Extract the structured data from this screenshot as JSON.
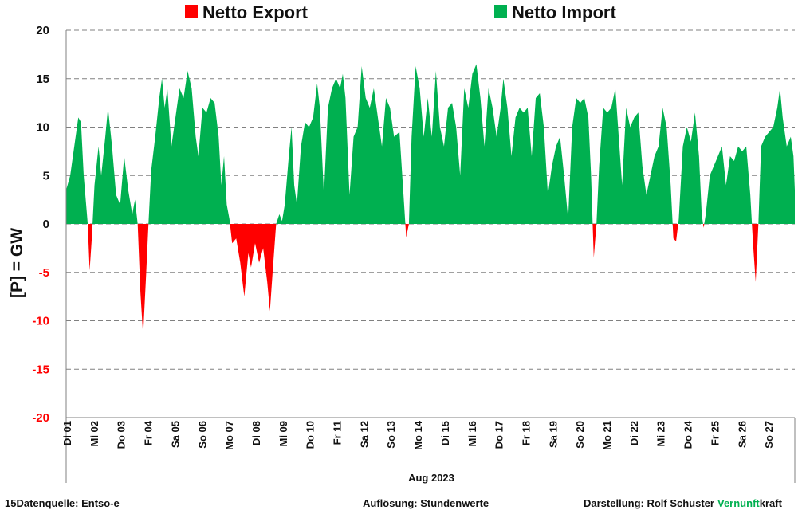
{
  "chart_data": {
    "type": "area",
    "legend": [
      {
        "label": "Netto Export",
        "color": "#ff0000"
      },
      {
        "label": "Netto Import",
        "color": "#00b050"
      }
    ],
    "ylabel": "[P] = GW",
    "xlabel": "Aug 2023",
    "ylim": [
      -20,
      20
    ],
    "yticks": [
      20,
      15,
      10,
      5,
      0,
      -5,
      -10,
      -15,
      -20
    ],
    "ytick_colors": {
      "positive": "#111111",
      "negative": "#ff0000"
    },
    "grid": "horizontal dashed",
    "day_labels": [
      "Di 01",
      "Mi 02",
      "Do 03",
      "Fr 04",
      "Sa 05",
      "So 06",
      "Mo 07",
      "Di 08",
      "Mi 09",
      "Do 10",
      "Fr 11",
      "Sa 12",
      "So 13",
      "Mo 14",
      "Di 15",
      "Mi 16",
      "Do 17",
      "Fr 18",
      "Sa 19",
      "So 20",
      "Mo 21",
      "Di 22",
      "Mi 23",
      "Do 24",
      "Fr 25",
      "Sa 26",
      "So 27"
    ],
    "x_unit": "day of August 2023 (1 = 1 Aug 00:00)",
    "series": [
      {
        "x": 1.0,
        "y": 3.5
      },
      {
        "x": 1.15,
        "y": 5.0
      },
      {
        "x": 1.3,
        "y": 8.0
      },
      {
        "x": 1.45,
        "y": 11.0
      },
      {
        "x": 1.55,
        "y": 10.5
      },
      {
        "x": 1.65,
        "y": 5.0
      },
      {
        "x": 1.8,
        "y": 0.0
      },
      {
        "x": 1.87,
        "y": -4.8
      },
      {
        "x": 1.95,
        "y": -1.5
      },
      {
        "x": 2.05,
        "y": 4.0
      },
      {
        "x": 2.2,
        "y": 8.0
      },
      {
        "x": 2.3,
        "y": 5.0
      },
      {
        "x": 2.45,
        "y": 9.0
      },
      {
        "x": 2.55,
        "y": 12.0
      },
      {
        "x": 2.7,
        "y": 8.0
      },
      {
        "x": 2.85,
        "y": 3.0
      },
      {
        "x": 3.0,
        "y": 2.0
      },
      {
        "x": 3.15,
        "y": 7.0
      },
      {
        "x": 3.3,
        "y": 3.5
      },
      {
        "x": 3.45,
        "y": 1.0
      },
      {
        "x": 3.55,
        "y": 2.5
      },
      {
        "x": 3.65,
        "y": 0.0
      },
      {
        "x": 3.75,
        "y": -7.0
      },
      {
        "x": 3.85,
        "y": -11.5
      },
      {
        "x": 3.95,
        "y": -6.0
      },
      {
        "x": 4.05,
        "y": 0.0
      },
      {
        "x": 4.15,
        "y": 5.5
      },
      {
        "x": 4.3,
        "y": 9.0
      },
      {
        "x": 4.45,
        "y": 13.0
      },
      {
        "x": 4.55,
        "y": 15.0
      },
      {
        "x": 4.65,
        "y": 12.0
      },
      {
        "x": 4.75,
        "y": 14.0
      },
      {
        "x": 4.9,
        "y": 8.0
      },
      {
        "x": 5.05,
        "y": 11.0
      },
      {
        "x": 5.2,
        "y": 14.0
      },
      {
        "x": 5.35,
        "y": 13.0
      },
      {
        "x": 5.5,
        "y": 15.8
      },
      {
        "x": 5.65,
        "y": 14.0
      },
      {
        "x": 5.8,
        "y": 9.0
      },
      {
        "x": 5.9,
        "y": 7.0
      },
      {
        "x": 6.05,
        "y": 12.0
      },
      {
        "x": 6.2,
        "y": 11.5
      },
      {
        "x": 6.35,
        "y": 13.0
      },
      {
        "x": 6.5,
        "y": 12.5
      },
      {
        "x": 6.65,
        "y": 9.0
      },
      {
        "x": 6.75,
        "y": 4.0
      },
      {
        "x": 6.85,
        "y": 7.0
      },
      {
        "x": 6.95,
        "y": 2.0
      },
      {
        "x": 7.05,
        "y": 0.5
      },
      {
        "x": 7.15,
        "y": -2.0
      },
      {
        "x": 7.3,
        "y": -1.5
      },
      {
        "x": 7.45,
        "y": -4.0
      },
      {
        "x": 7.6,
        "y": -7.5
      },
      {
        "x": 7.75,
        "y": -3.0
      },
      {
        "x": 7.85,
        "y": -4.5
      },
      {
        "x": 8.0,
        "y": -2.0
      },
      {
        "x": 8.15,
        "y": -4.0
      },
      {
        "x": 8.3,
        "y": -2.5
      },
      {
        "x": 8.45,
        "y": -6.0
      },
      {
        "x": 8.55,
        "y": -9.0
      },
      {
        "x": 8.65,
        "y": -5.0
      },
      {
        "x": 8.78,
        "y": 0.0
      },
      {
        "x": 8.9,
        "y": 1.0
      },
      {
        "x": 9.0,
        "y": 0.3
      },
      {
        "x": 9.1,
        "y": 2.0
      },
      {
        "x": 9.25,
        "y": 7.0
      },
      {
        "x": 9.35,
        "y": 10.0
      },
      {
        "x": 9.45,
        "y": 4.0
      },
      {
        "x": 9.55,
        "y": 2.0
      },
      {
        "x": 9.7,
        "y": 8.0
      },
      {
        "x": 9.85,
        "y": 10.5
      },
      {
        "x": 10.0,
        "y": 10.0
      },
      {
        "x": 10.15,
        "y": 11.0
      },
      {
        "x": 10.3,
        "y": 14.5
      },
      {
        "x": 10.4,
        "y": 12.0
      },
      {
        "x": 10.55,
        "y": 3.0
      },
      {
        "x": 10.7,
        "y": 12.0
      },
      {
        "x": 10.85,
        "y": 14.0
      },
      {
        "x": 11.0,
        "y": 15.0
      },
      {
        "x": 11.15,
        "y": 14.0
      },
      {
        "x": 11.25,
        "y": 15.5
      },
      {
        "x": 11.35,
        "y": 13.0
      },
      {
        "x": 11.5,
        "y": 3.0
      },
      {
        "x": 11.65,
        "y": 9.0
      },
      {
        "x": 11.8,
        "y": 10.0
      },
      {
        "x": 11.95,
        "y": 16.3
      },
      {
        "x": 12.1,
        "y": 13.0
      },
      {
        "x": 12.25,
        "y": 12.0
      },
      {
        "x": 12.4,
        "y": 14.0
      },
      {
        "x": 12.55,
        "y": 11.0
      },
      {
        "x": 12.7,
        "y": 8.0
      },
      {
        "x": 12.85,
        "y": 13.0
      },
      {
        "x": 13.0,
        "y": 12.0
      },
      {
        "x": 13.15,
        "y": 9.0
      },
      {
        "x": 13.35,
        "y": 9.5
      },
      {
        "x": 13.5,
        "y": 3.0
      },
      {
        "x": 13.6,
        "y": -1.4
      },
      {
        "x": 13.7,
        "y": 0.0
      },
      {
        "x": 13.8,
        "y": 9.0
      },
      {
        "x": 13.95,
        "y": 16.3
      },
      {
        "x": 14.1,
        "y": 14.0
      },
      {
        "x": 14.25,
        "y": 9.0
      },
      {
        "x": 14.4,
        "y": 13.0
      },
      {
        "x": 14.55,
        "y": 9.0
      },
      {
        "x": 14.7,
        "y": 15.8
      },
      {
        "x": 14.85,
        "y": 10.0
      },
      {
        "x": 15.0,
        "y": 8.0
      },
      {
        "x": 15.15,
        "y": 12.0
      },
      {
        "x": 15.3,
        "y": 12.5
      },
      {
        "x": 15.45,
        "y": 10.0
      },
      {
        "x": 15.6,
        "y": 5.0
      },
      {
        "x": 15.75,
        "y": 14.0
      },
      {
        "x": 15.9,
        "y": 12.0
      },
      {
        "x": 16.05,
        "y": 15.5
      },
      {
        "x": 16.2,
        "y": 16.5
      },
      {
        "x": 16.35,
        "y": 13.0
      },
      {
        "x": 16.5,
        "y": 8.0
      },
      {
        "x": 16.65,
        "y": 14.0
      },
      {
        "x": 16.8,
        "y": 12.0
      },
      {
        "x": 16.95,
        "y": 9.0
      },
      {
        "x": 17.1,
        "y": 12.0
      },
      {
        "x": 17.2,
        "y": 15.0
      },
      {
        "x": 17.35,
        "y": 12.0
      },
      {
        "x": 17.5,
        "y": 7.0
      },
      {
        "x": 17.65,
        "y": 11.0
      },
      {
        "x": 17.8,
        "y": 12.0
      },
      {
        "x": 17.95,
        "y": 11.5
      },
      {
        "x": 18.1,
        "y": 12.0
      },
      {
        "x": 18.25,
        "y": 7.0
      },
      {
        "x": 18.4,
        "y": 13.0
      },
      {
        "x": 18.55,
        "y": 13.5
      },
      {
        "x": 18.7,
        "y": 10.0
      },
      {
        "x": 18.85,
        "y": 3.0
      },
      {
        "x": 19.0,
        "y": 6.0
      },
      {
        "x": 19.15,
        "y": 8.0
      },
      {
        "x": 19.3,
        "y": 9.0
      },
      {
        "x": 19.45,
        "y": 5.0
      },
      {
        "x": 19.6,
        "y": 0.5
      },
      {
        "x": 19.75,
        "y": 10.0
      },
      {
        "x": 19.9,
        "y": 13.0
      },
      {
        "x": 20.05,
        "y": 12.5
      },
      {
        "x": 20.2,
        "y": 13.0
      },
      {
        "x": 20.35,
        "y": 11.0
      },
      {
        "x": 20.45,
        "y": 5.0
      },
      {
        "x": 20.55,
        "y": -3.5
      },
      {
        "x": 20.65,
        "y": 0.0
      },
      {
        "x": 20.75,
        "y": 6.0
      },
      {
        "x": 20.9,
        "y": 12.0
      },
      {
        "x": 21.05,
        "y": 11.5
      },
      {
        "x": 21.2,
        "y": 12.0
      },
      {
        "x": 21.35,
        "y": 14.0
      },
      {
        "x": 21.5,
        "y": 8.0
      },
      {
        "x": 21.6,
        "y": 4.0
      },
      {
        "x": 21.75,
        "y": 12.0
      },
      {
        "x": 21.9,
        "y": 10.0
      },
      {
        "x": 22.05,
        "y": 11.0
      },
      {
        "x": 22.2,
        "y": 11.5
      },
      {
        "x": 22.35,
        "y": 6.0
      },
      {
        "x": 22.5,
        "y": 3.0
      },
      {
        "x": 22.65,
        "y": 5.0
      },
      {
        "x": 22.8,
        "y": 7.0
      },
      {
        "x": 22.95,
        "y": 8.0
      },
      {
        "x": 23.1,
        "y": 12.0
      },
      {
        "x": 23.25,
        "y": 10.0
      },
      {
        "x": 23.4,
        "y": 4.0
      },
      {
        "x": 23.5,
        "y": -1.5
      },
      {
        "x": 23.6,
        "y": -1.8
      },
      {
        "x": 23.7,
        "y": 0.5
      },
      {
        "x": 23.85,
        "y": 8.0
      },
      {
        "x": 24.0,
        "y": 10.0
      },
      {
        "x": 24.15,
        "y": 8.5
      },
      {
        "x": 24.3,
        "y": 11.5
      },
      {
        "x": 24.45,
        "y": 7.0
      },
      {
        "x": 24.55,
        "y": 1.0
      },
      {
        "x": 24.62,
        "y": -0.4
      },
      {
        "x": 24.7,
        "y": 1.0
      },
      {
        "x": 24.85,
        "y": 5.0
      },
      {
        "x": 25.0,
        "y": 6.0
      },
      {
        "x": 25.15,
        "y": 7.0
      },
      {
        "x": 25.3,
        "y": 8.0
      },
      {
        "x": 25.45,
        "y": 4.0
      },
      {
        "x": 25.6,
        "y": 7.0
      },
      {
        "x": 25.75,
        "y": 6.5
      },
      {
        "x": 25.9,
        "y": 8.0
      },
      {
        "x": 26.05,
        "y": 7.5
      },
      {
        "x": 26.2,
        "y": 8.0
      },
      {
        "x": 26.35,
        "y": 3.0
      },
      {
        "x": 26.45,
        "y": -2.0
      },
      {
        "x": 26.55,
        "y": -6.0
      },
      {
        "x": 26.65,
        "y": 0.0
      },
      {
        "x": 26.75,
        "y": 8.0
      },
      {
        "x": 26.9,
        "y": 9.0
      },
      {
        "x": 27.05,
        "y": 9.5
      },
      {
        "x": 27.2,
        "y": 10.0
      },
      {
        "x": 27.35,
        "y": 12.0
      },
      {
        "x": 27.45,
        "y": 14.0
      },
      {
        "x": 27.55,
        "y": 11.0
      },
      {
        "x": 27.7,
        "y": 8.0
      },
      {
        "x": 27.85,
        "y": 9.0
      },
      {
        "x": 27.95,
        "y": 7.0
      },
      {
        "x": 28.0,
        "y": 3.5
      }
    ]
  },
  "footer": {
    "source": "15Datenquelle: Entso-e",
    "resolution": "Auflösung: Stundenwerte",
    "author": "Darstellung:  Rolf Schuster",
    "brand_green": "Vernunft",
    "brand_rest": "kraft",
    "brand_color": "#00b050"
  }
}
